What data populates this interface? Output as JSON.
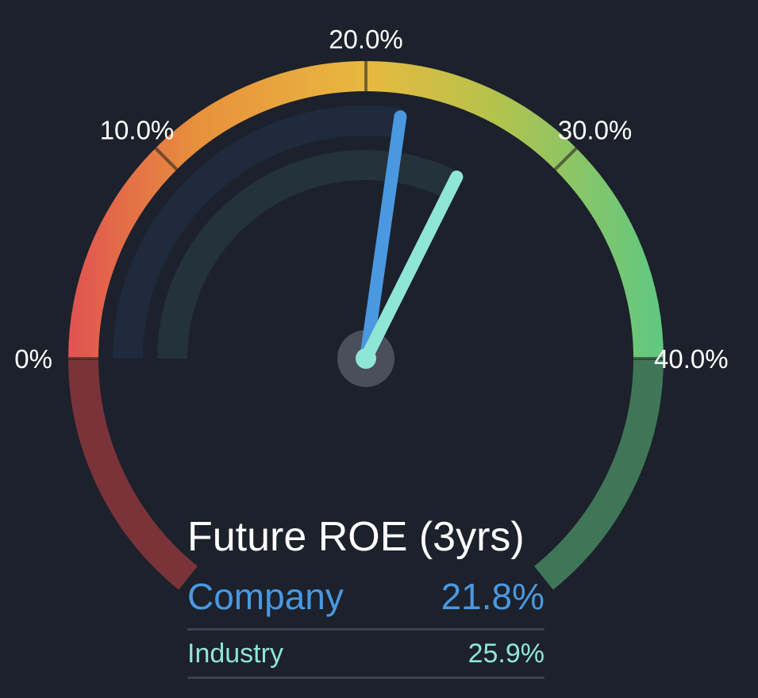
{
  "chart_data": {
    "type": "gauge",
    "title": "Future ROE (3yrs)",
    "axis": {
      "min": 0,
      "max": 40,
      "ticks": [
        0,
        10,
        20,
        30,
        40
      ],
      "tick_labels": [
        "0%",
        "10.0%",
        "20.0%",
        "30.0%",
        "40.0%"
      ]
    },
    "series": [
      {
        "name": "Company",
        "value": 21.8,
        "display": "21.8%",
        "color": "#4a98e0"
      },
      {
        "name": "Industry",
        "value": 25.9,
        "display": "25.9%",
        "color": "#8ee6d4"
      }
    ],
    "colors": {
      "low": "#e05252",
      "mid_low": "#e8913c",
      "mid": "#e8b940",
      "mid_high": "#b9c24a",
      "high": "#5ec882",
      "below_range": "#7a3339",
      "above_range": "#3f7658",
      "background": "#1c212b"
    }
  }
}
